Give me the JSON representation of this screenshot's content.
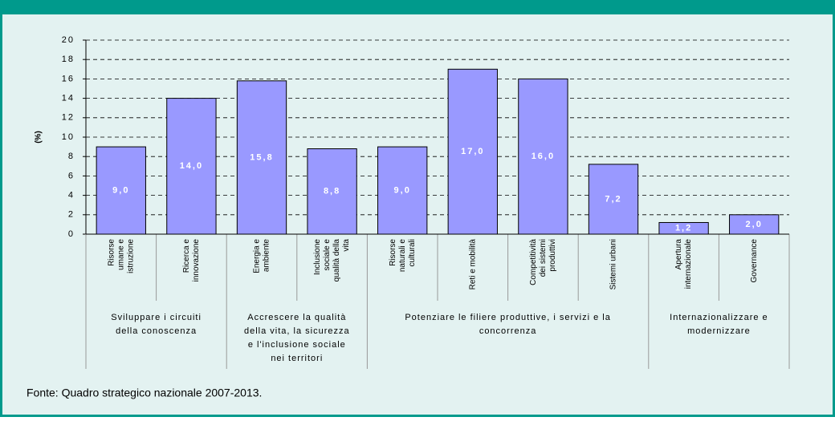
{
  "chart_data": {
    "type": "bar",
    "ylabel": "(%)",
    "categories": [
      [
        "Risorse",
        "umane e",
        "istruzione"
      ],
      [
        "Ricerca e",
        "innovazione"
      ],
      [
        "Energia e",
        "ambiente"
      ],
      [
        "Inclusione",
        "sociale e",
        "qualità della",
        "vita"
      ],
      [
        "Risorse",
        "naturali e",
        "culturali"
      ],
      [
        "Reti e mobilità"
      ],
      [
        "Competitività",
        "dei sistemi",
        "produttivi"
      ],
      [
        "Sistemi urbani"
      ],
      [
        "Apertura",
        "internazionale"
      ],
      [
        "Governance"
      ]
    ],
    "values": [
      9.0,
      14.0,
      15.8,
      8.8,
      9.0,
      17.0,
      16.0,
      7.2,
      1.2,
      2.0
    ],
    "value_labels": [
      "9,0",
      "14,0",
      "15,8",
      "8,8",
      "9,0",
      "17,0",
      "16,0",
      "7,2",
      "1,2",
      "2,0"
    ],
    "groups": [
      {
        "label": [
          "Sviluppare i circuiti",
          "della conoscenza"
        ],
        "span": [
          0,
          1
        ]
      },
      {
        "label": [
          "Accrescere la qualità",
          "della vita, la sicurezza",
          "e l'inclusione sociale",
          "nei territori"
        ],
        "span": [
          2,
          3
        ]
      },
      {
        "label": [
          "Potenziare le filiere produttive, i servizi e la",
          "concorrenza"
        ],
        "span": [
          4,
          7
        ]
      },
      {
        "label": [
          "Internazionalizzare e",
          "modernizzare"
        ],
        "span": [
          8,
          9
        ]
      }
    ],
    "color": "#9999ff",
    "ylim": [
      0,
      20
    ],
    "yticks": [
      0,
      2,
      4,
      6,
      8,
      10,
      12,
      14,
      16,
      18,
      20
    ],
    "grid": true,
    "source": "Fonte: Quadro strategico nazionale 2007-2013."
  }
}
